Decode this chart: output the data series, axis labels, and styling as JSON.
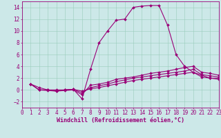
{
  "xlabel": "Windchill (Refroidissement éolien,°C)",
  "background_color": "#cce8e8",
  "grid_color": "#99ccbb",
  "line_color": "#990077",
  "xlim": [
    0,
    23
  ],
  "ylim": [
    -3,
    15
  ],
  "yticks": [
    -2,
    0,
    2,
    4,
    6,
    8,
    10,
    12,
    14
  ],
  "xticks": [
    0,
    1,
    2,
    3,
    4,
    5,
    6,
    7,
    8,
    9,
    10,
    11,
    12,
    13,
    14,
    15,
    16,
    17,
    18,
    19,
    20,
    21,
    22,
    23
  ],
  "x_vals": [
    1,
    2,
    3,
    4,
    5,
    6,
    7,
    8,
    9,
    10,
    11,
    12,
    13,
    14,
    15,
    16,
    17,
    18,
    19,
    20,
    21,
    22,
    23
  ],
  "series": [
    [
      1.0,
      0.4,
      0.0,
      0.0,
      0.0,
      0.1,
      -1.5,
      3.5,
      8.0,
      10.0,
      11.8,
      12.0,
      14.0,
      14.2,
      14.3,
      14.3,
      11.0,
      6.0,
      4.0,
      3.0,
      2.5,
      2.0,
      2.0
    ],
    [
      1.0,
      0.0,
      -0.1,
      -0.2,
      -0.1,
      0.0,
      -0.8,
      0.8,
      1.0,
      1.3,
      1.8,
      2.0,
      2.2,
      2.5,
      2.8,
      3.0,
      3.2,
      3.5,
      3.8,
      4.0,
      3.0,
      2.8,
      2.5
    ],
    [
      1.0,
      0.0,
      0.0,
      -0.2,
      0.0,
      0.1,
      -0.5,
      0.4,
      0.7,
      1.0,
      1.4,
      1.7,
      2.0,
      2.2,
      2.4,
      2.6,
      2.8,
      3.0,
      3.2,
      3.5,
      2.6,
      2.4,
      2.2
    ],
    [
      1.0,
      0.0,
      0.0,
      -0.1,
      0.0,
      0.1,
      -0.2,
      0.2,
      0.4,
      0.7,
      1.0,
      1.3,
      1.6,
      1.8,
      2.0,
      2.2,
      2.4,
      2.6,
      2.8,
      3.0,
      2.2,
      2.0,
      1.8
    ]
  ],
  "tick_fontsize": 5.5,
  "xlabel_fontsize": 6.0,
  "marker_size": 2.0,
  "line_width": 0.8
}
